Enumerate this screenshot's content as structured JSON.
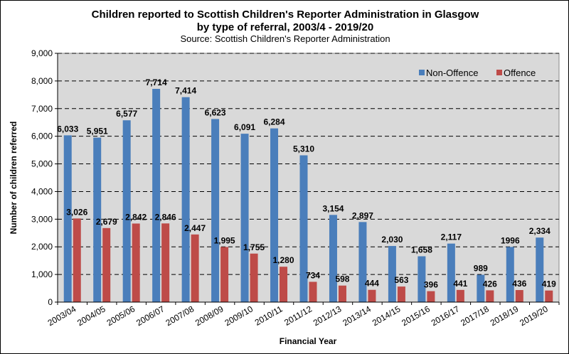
{
  "chart_data": {
    "type": "bar",
    "title_line1": "Children reported to Scottish Children's Reporter Administration in Glasgow",
    "title_line2": "by type of referral, 2003/4 - 2019/20",
    "subtitle": "Source: Scottish Children's Reporter Administration",
    "xlabel": "Financial Year",
    "ylabel": "Number of children referred",
    "ylim": [
      0,
      9000
    ],
    "ytick_step": 1000,
    "yticks": [
      "0",
      "1,000",
      "2,000",
      "3,000",
      "4,000",
      "5,000",
      "6,000",
      "7,000",
      "8,000",
      "9,000"
    ],
    "grid": true,
    "legend_position": "top-right",
    "categories": [
      "2003/04",
      "2004/05",
      "2005/06",
      "2006/07",
      "2007/08",
      "2008/09",
      "2009/10",
      "2010/11",
      "2011/12",
      "2012/13",
      "2013/14",
      "2014/15",
      "2015/16",
      "2016/17",
      "2017/18",
      "2018/19",
      "2019/20"
    ],
    "series": [
      {
        "name": "Non-Offence",
        "color": "#4a7ebb",
        "values": [
          6033,
          5951,
          6577,
          7714,
          7414,
          6623,
          6091,
          6284,
          5310,
          3154,
          2897,
          2030,
          1658,
          2117,
          989,
          1996,
          2334
        ],
        "labels": [
          "6,033",
          "5,951",
          "6,577",
          "7,714",
          "7,414",
          "6,623",
          "6,091",
          "6,284",
          "5,310",
          "3,154",
          "2,897",
          "2,030",
          "1,658",
          "2,117",
          "989",
          "1996",
          "2,334"
        ]
      },
      {
        "name": "Offence",
        "color": "#be4b48",
        "values": [
          3026,
          2679,
          2842,
          2846,
          2447,
          1995,
          1755,
          1280,
          734,
          598,
          444,
          563,
          396,
          441,
          426,
          436,
          419
        ],
        "labels": [
          "3,026",
          "2,679",
          "2,842",
          "2,846",
          "2,447",
          "1,995",
          "1,755",
          "1,280",
          "734",
          "598",
          "444",
          "563",
          "396",
          "441",
          "426",
          "436",
          "419"
        ]
      }
    ]
  }
}
